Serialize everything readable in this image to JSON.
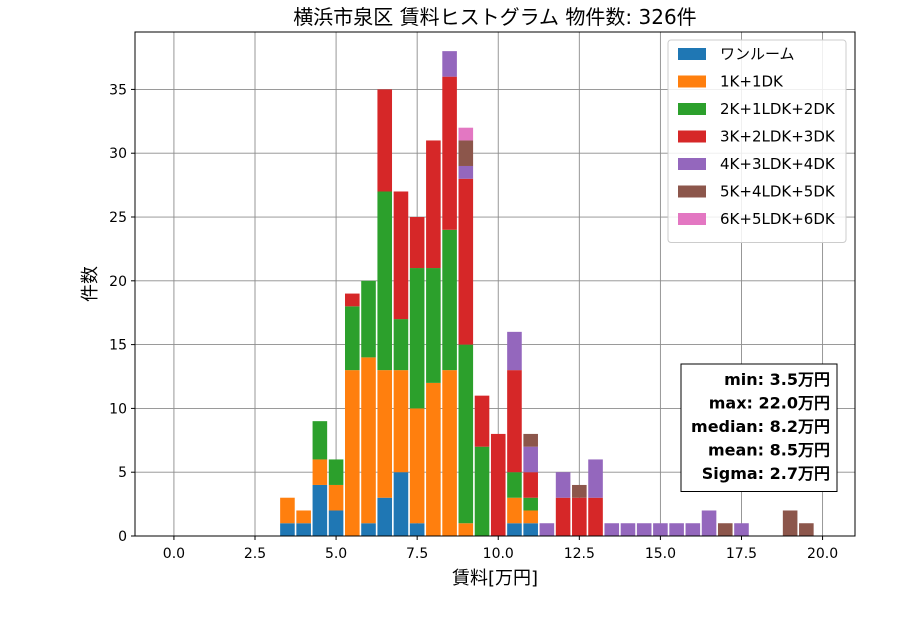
{
  "chart_data": {
    "type": "bar",
    "stacked": true,
    "title": "横浜市泉区 賃料ヒストグラム 物件数: 326件",
    "xlabel": "賃料[万円]",
    "ylabel": "件数",
    "xlim": [
      -1.2,
      21.0
    ],
    "ylim": [
      0,
      39.5
    ],
    "xticks": [
      "0.0",
      "2.5",
      "5.0",
      "7.5",
      "10.0",
      "12.5",
      "15.0",
      "17.5",
      "20.0"
    ],
    "xtick_values": [
      0,
      2.5,
      5,
      7.5,
      10,
      12.5,
      15,
      17.5,
      20
    ],
    "yticks": [
      "0",
      "5",
      "10",
      "15",
      "20",
      "25",
      "30",
      "35"
    ],
    "ytick_values": [
      0,
      5,
      10,
      15,
      20,
      25,
      30,
      35
    ],
    "grid": true,
    "legend_position": "top-right",
    "bin_width": 0.5,
    "x": [
      3.5,
      4.0,
      4.5,
      5.0,
      5.5,
      6.0,
      6.5,
      7.0,
      7.5,
      8.0,
      8.5,
      9.0,
      9.5,
      10.0,
      10.5,
      11.0,
      11.5,
      12.0,
      12.5,
      13.0,
      13.5,
      14.0,
      14.5,
      15.0,
      15.5,
      16.0,
      16.5,
      17.0,
      17.5,
      18.0,
      18.5,
      19.0,
      19.5
    ],
    "series": [
      {
        "name": "ワンルーム",
        "color": "#1f77b4",
        "values": [
          1,
          1,
          4,
          2,
          0,
          1,
          3,
          5,
          1,
          0,
          0,
          0,
          0,
          0,
          1,
          1,
          0,
          0,
          0,
          0,
          0,
          0,
          0,
          0,
          0,
          0,
          0,
          0,
          0,
          0,
          0,
          0,
          0
        ]
      },
      {
        "name": "1K+1DK",
        "color": "#ff7f0e",
        "values": [
          2,
          1,
          2,
          2,
          13,
          13,
          10,
          8,
          9,
          12,
          13,
          1,
          0,
          0,
          2,
          1,
          0,
          0,
          0,
          0,
          0,
          0,
          0,
          0,
          0,
          0,
          0,
          0,
          0,
          0,
          0,
          0,
          0
        ]
      },
      {
        "name": "2K+1LDK+2DK",
        "color": "#2ca02c",
        "values": [
          0,
          0,
          3,
          2,
          5,
          6,
          14,
          4,
          11,
          9,
          11,
          14,
          7,
          0,
          2,
          1,
          0,
          0,
          0,
          0,
          0,
          0,
          0,
          0,
          0,
          0,
          0,
          0,
          0,
          0,
          0,
          0,
          0
        ]
      },
      {
        "name": "3K+2LDK+3DK",
        "color": "#d62728",
        "values": [
          0,
          0,
          0,
          0,
          1,
          0,
          8,
          10,
          4,
          10,
          12,
          13,
          4,
          8,
          8,
          2,
          0,
          3,
          3,
          3,
          0,
          0,
          0,
          0,
          0,
          0,
          0,
          0,
          0,
          0,
          0,
          0,
          0
        ]
      },
      {
        "name": "4K+3LDK+4DK",
        "color": "#9467bd",
        "values": [
          0,
          0,
          0,
          0,
          0,
          0,
          0,
          0,
          0,
          0,
          2,
          1,
          0,
          0,
          3,
          2,
          1,
          2,
          0,
          3,
          1,
          1,
          1,
          1,
          1,
          1,
          2,
          0,
          1,
          0,
          0,
          0,
          0
        ]
      },
      {
        "name": "5K+4LDK+5DK",
        "color": "#8c564b",
        "values": [
          0,
          0,
          0,
          0,
          0,
          0,
          0,
          0,
          0,
          0,
          0,
          2,
          0,
          0,
          0,
          1,
          0,
          0,
          1,
          0,
          0,
          0,
          0,
          0,
          0,
          0,
          0,
          1,
          0,
          0,
          0,
          2,
          1
        ]
      },
      {
        "name": "6K+5LDK+6DK",
        "color": "#e377c2",
        "values": [
          0,
          0,
          0,
          0,
          0,
          0,
          0,
          0,
          0,
          0,
          0,
          1,
          0,
          0,
          0,
          0,
          0,
          0,
          0,
          0,
          0,
          0,
          0,
          0,
          0,
          0,
          0,
          0,
          0,
          0,
          0,
          0,
          0
        ]
      }
    ],
    "stats": [
      "min: 3.5万円",
      "max: 22.0万円",
      "median: 8.2万円",
      "mean: 8.5万円",
      "Sigma: 2.7万円"
    ]
  }
}
